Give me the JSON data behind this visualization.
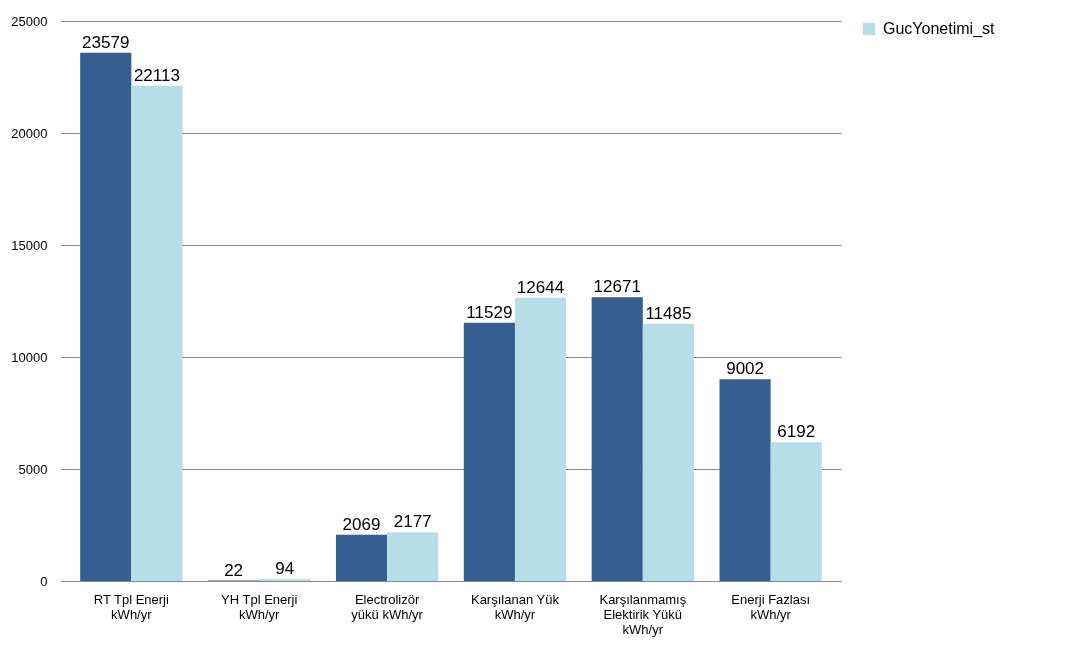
{
  "chart_data": {
    "type": "bar",
    "categories": [
      "RT Tpl Enerji kWh/yr",
      "YH Tpl Enerji kWh/yr",
      "Electrolizör yükü kWh/yr",
      "Karşılanan Yük kWh/yr",
      "Karşılanmamış Elektirik Yükü kWh/yr",
      "Enerji Fazlası kWh/yr"
    ],
    "series": [
      {
        "color": "#355e91",
        "values": [
          23579,
          22,
          2069,
          11529,
          12671,
          9002
        ]
      },
      {
        "name": "GucYonetimi_st",
        "color": "#b7dde8",
        "values": [
          22113,
          94,
          2177,
          12644,
          11485,
          6192
        ]
      }
    ],
    "ylim": [
      0,
      25000
    ],
    "yticks": [
      0,
      5000,
      10000,
      15000,
      20000,
      25000
    ],
    "grid": "y",
    "legend": "right",
    "data_labels": true
  }
}
